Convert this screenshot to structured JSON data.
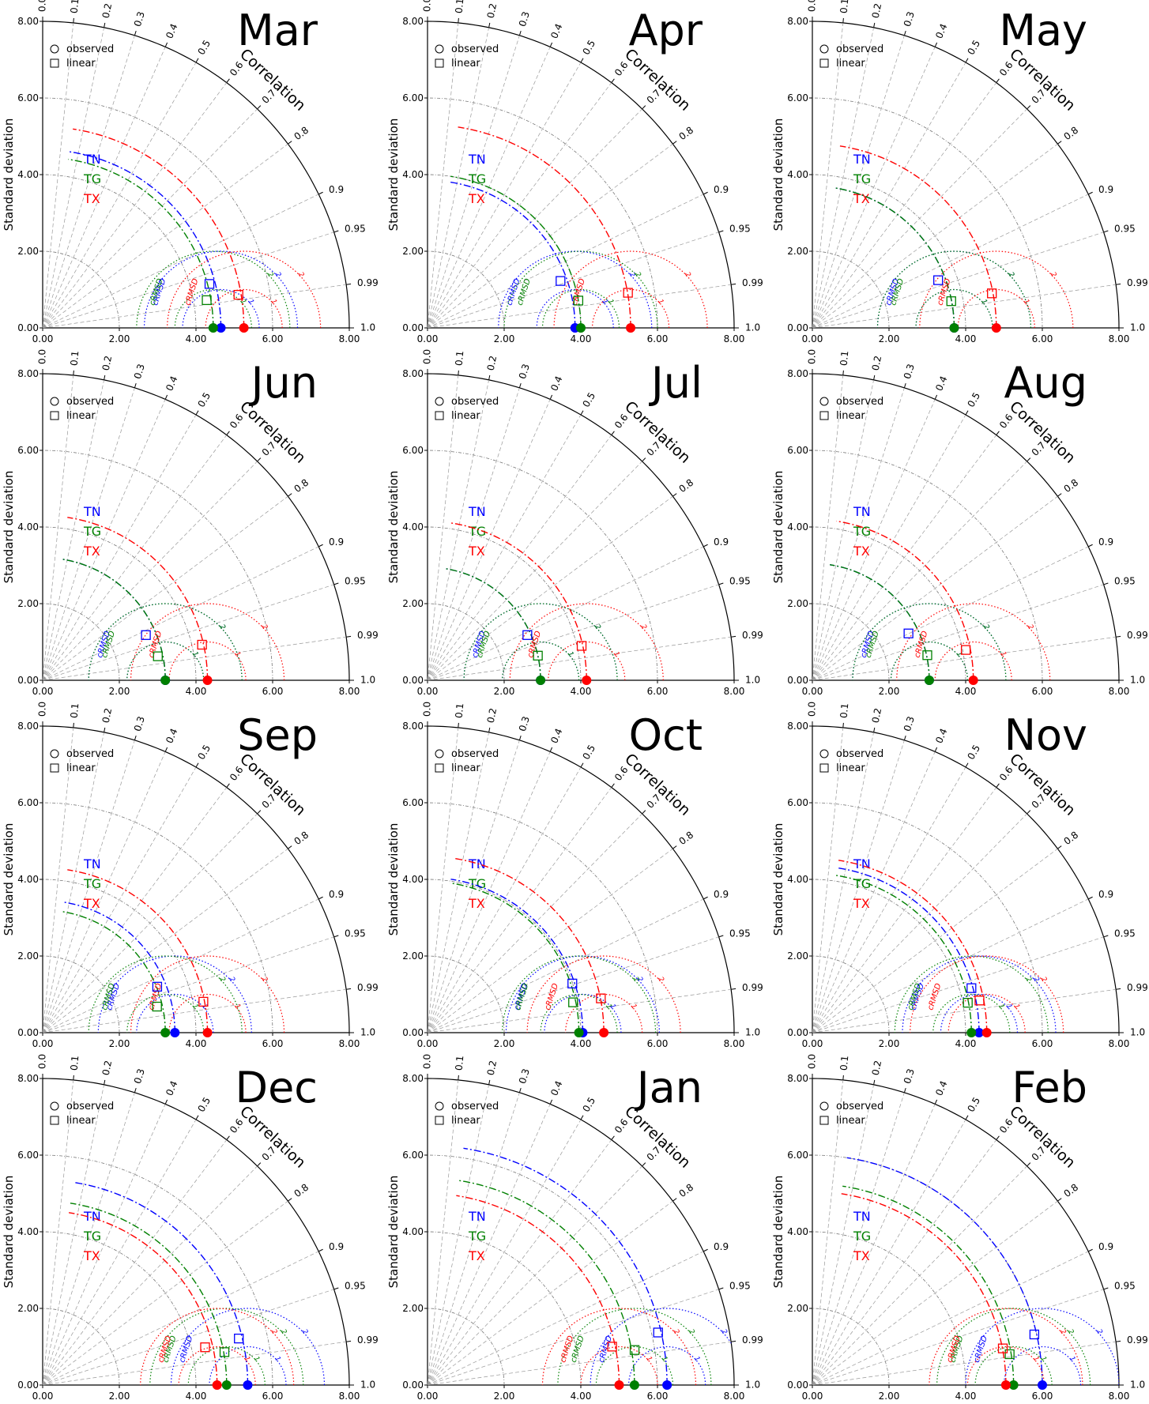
{
  "figure": {
    "type": "taylor-diagram",
    "std_axis_ticks": [
      "0.00",
      "2.00",
      "4.00",
      "6.00",
      "8.00"
    ],
    "std_axis_label": "Standard deviation",
    "correlation_label": "Correlation",
    "correlation_ticks": [
      "0.0",
      "0.1",
      "0.2",
      "0.3",
      "0.4",
      "0.5",
      "0.6",
      "0.7",
      "0.8",
      "0.9",
      "0.95",
      "0.99",
      "1.0"
    ],
    "marker_legend": [
      {
        "shape": "circle",
        "label": "observed"
      },
      {
        "shape": "square",
        "label": "linear"
      }
    ],
    "series": [
      {
        "name": "TN",
        "color": "#0000ff"
      },
      {
        "name": "TG",
        "color": "#008000"
      },
      {
        "name": "TX",
        "color": "#ff0000"
      }
    ],
    "crmsd_label": "cRMSD",
    "crmsd_ticks": [
      "1",
      "2"
    ]
  },
  "chart_data": [
    {
      "type": "taylor",
      "title": "Mar",
      "std_range": [
        0,
        8
      ],
      "series": [
        {
          "name": "TN",
          "color": "#0000ff",
          "observed_std": 4.65,
          "linear_std": 4.5,
          "linear_corr": 0.967
        },
        {
          "name": "TG",
          "color": "#008000",
          "observed_std": 4.45,
          "linear_std": 4.34,
          "linear_corr": 0.986
        },
        {
          "name": "TX",
          "color": "#ff0000",
          "observed_std": 5.25,
          "linear_std": 5.18,
          "linear_corr": 0.986
        }
      ]
    },
    {
      "type": "taylor",
      "title": "Apr",
      "std_range": [
        0,
        8
      ],
      "series": [
        {
          "name": "TN",
          "color": "#0000ff",
          "observed_std": 3.85,
          "linear_std": 3.68,
          "linear_corr": 0.943
        },
        {
          "name": "TG",
          "color": "#008000",
          "observed_std": 4.0,
          "linear_std": 4.0,
          "linear_corr": 0.984
        },
        {
          "name": "TX",
          "color": "#ff0000",
          "observed_std": 5.3,
          "linear_std": 5.31,
          "linear_corr": 0.985
        }
      ]
    },
    {
      "type": "taylor",
      "title": "May",
      "std_range": [
        0,
        8
      ],
      "series": [
        {
          "name": "TN",
          "color": "#0000ff",
          "observed_std": 3.7,
          "linear_std": 3.51,
          "linear_corr": 0.935
        },
        {
          "name": "TG",
          "color": "#008000",
          "observed_std": 3.7,
          "linear_std": 3.69,
          "linear_corr": 0.982
        },
        {
          "name": "TX",
          "color": "#ff0000",
          "observed_std": 4.8,
          "linear_std": 4.77,
          "linear_corr": 0.982
        }
      ]
    },
    {
      "type": "taylor",
      "title": "Jun",
      "std_range": [
        0,
        8
      ],
      "series": [
        {
          "name": "TN",
          "color": "#0000ff",
          "observed_std": 3.2,
          "linear_std": 2.94,
          "linear_corr": 0.916
        },
        {
          "name": "TG",
          "color": "#008000",
          "observed_std": 3.2,
          "linear_std": 3.07,
          "linear_corr": 0.979
        },
        {
          "name": "TX",
          "color": "#ff0000",
          "observed_std": 4.3,
          "linear_std": 4.26,
          "linear_corr": 0.976
        }
      ]
    },
    {
      "type": "taylor",
      "title": "Jul",
      "std_range": [
        0,
        8
      ],
      "series": [
        {
          "name": "TN",
          "color": "#0000ff",
          "observed_std": 2.95,
          "linear_std": 2.86,
          "linear_corr": 0.911
        },
        {
          "name": "TG",
          "color": "#008000",
          "observed_std": 2.95,
          "linear_std": 2.95,
          "linear_corr": 0.976
        },
        {
          "name": "TX",
          "color": "#ff0000",
          "observed_std": 4.15,
          "linear_std": 4.12,
          "linear_corr": 0.976
        }
      ]
    },
    {
      "type": "taylor",
      "title": "Aug",
      "std_range": [
        0,
        8
      ],
      "series": [
        {
          "name": "TN",
          "color": "#0000ff",
          "observed_std": 3.05,
          "linear_std": 2.79,
          "linear_corr": 0.899
        },
        {
          "name": "TG",
          "color": "#008000",
          "observed_std": 3.05,
          "linear_std": 3.07,
          "linear_corr": 0.977
        },
        {
          "name": "TX",
          "color": "#ff0000",
          "observed_std": 4.2,
          "linear_std": 4.08,
          "linear_corr": 0.981
        }
      ]
    },
    {
      "type": "taylor",
      "title": "Sep",
      "std_range": [
        0,
        8
      ],
      "series": [
        {
          "name": "TN",
          "color": "#0000ff",
          "observed_std": 3.45,
          "linear_std": 3.22,
          "linear_corr": 0.928
        },
        {
          "name": "TG",
          "color": "#008000",
          "observed_std": 3.2,
          "linear_std": 3.06,
          "linear_corr": 0.975
        },
        {
          "name": "TX",
          "color": "#ff0000",
          "observed_std": 4.3,
          "linear_std": 4.27,
          "linear_corr": 0.982
        }
      ]
    },
    {
      "type": "taylor",
      "title": "Oct",
      "std_range": [
        0,
        8
      ],
      "series": [
        {
          "name": "TN",
          "color": "#0000ff",
          "observed_std": 4.05,
          "linear_std": 3.99,
          "linear_corr": 0.947
        },
        {
          "name": "TG",
          "color": "#008000",
          "observed_std": 3.95,
          "linear_std": 3.88,
          "linear_corr": 0.979
        },
        {
          "name": "TX",
          "color": "#ff0000",
          "observed_std": 4.6,
          "linear_std": 4.61,
          "linear_corr": 0.981
        }
      ]
    },
    {
      "type": "taylor",
      "title": "Nov",
      "std_range": [
        0,
        8
      ],
      "series": [
        {
          "name": "TN",
          "color": "#0000ff",
          "observed_std": 4.35,
          "linear_std": 4.31,
          "linear_corr": 0.963
        },
        {
          "name": "TG",
          "color": "#008000",
          "observed_std": 4.15,
          "linear_std": 4.13,
          "linear_corr": 0.982
        },
        {
          "name": "TX",
          "color": "#ff0000",
          "observed_std": 4.55,
          "linear_std": 4.44,
          "linear_corr": 0.982
        }
      ]
    },
    {
      "type": "taylor",
      "title": "Dec",
      "std_range": [
        0,
        8
      ],
      "series": [
        {
          "name": "TN",
          "color": "#0000ff",
          "observed_std": 5.35,
          "linear_std": 5.26,
          "linear_corr": 0.973
        },
        {
          "name": "TG",
          "color": "#008000",
          "observed_std": 4.8,
          "linear_std": 4.82,
          "linear_corr": 0.984
        },
        {
          "name": "TX",
          "color": "#ff0000",
          "observed_std": 4.55,
          "linear_std": 4.35,
          "linear_corr": 0.974
        }
      ]
    },
    {
      "type": "taylor",
      "title": "Jan",
      "std_range": [
        0,
        8
      ],
      "series": [
        {
          "name": "TN",
          "color": "#0000ff",
          "observed_std": 6.25,
          "linear_std": 6.17,
          "linear_corr": 0.975
        },
        {
          "name": "TG",
          "color": "#008000",
          "observed_std": 5.4,
          "linear_std": 5.48,
          "linear_corr": 0.986
        },
        {
          "name": "TX",
          "color": "#ff0000",
          "observed_std": 5.0,
          "linear_std": 4.92,
          "linear_corr": 0.979
        }
      ]
    },
    {
      "type": "taylor",
      "title": "Feb",
      "std_range": [
        0,
        8
      ],
      "series": [
        {
          "name": "TN",
          "color": "#0000ff",
          "observed_std": 6.0,
          "linear_std": 5.94,
          "linear_corr": 0.975
        },
        {
          "name": "TG",
          "color": "#008000",
          "observed_std": 5.25,
          "linear_std": 5.21,
          "linear_corr": 0.988
        },
        {
          "name": "TX",
          "color": "#ff0000",
          "observed_std": 5.05,
          "linear_std": 5.06,
          "linear_corr": 0.982
        }
      ]
    }
  ]
}
